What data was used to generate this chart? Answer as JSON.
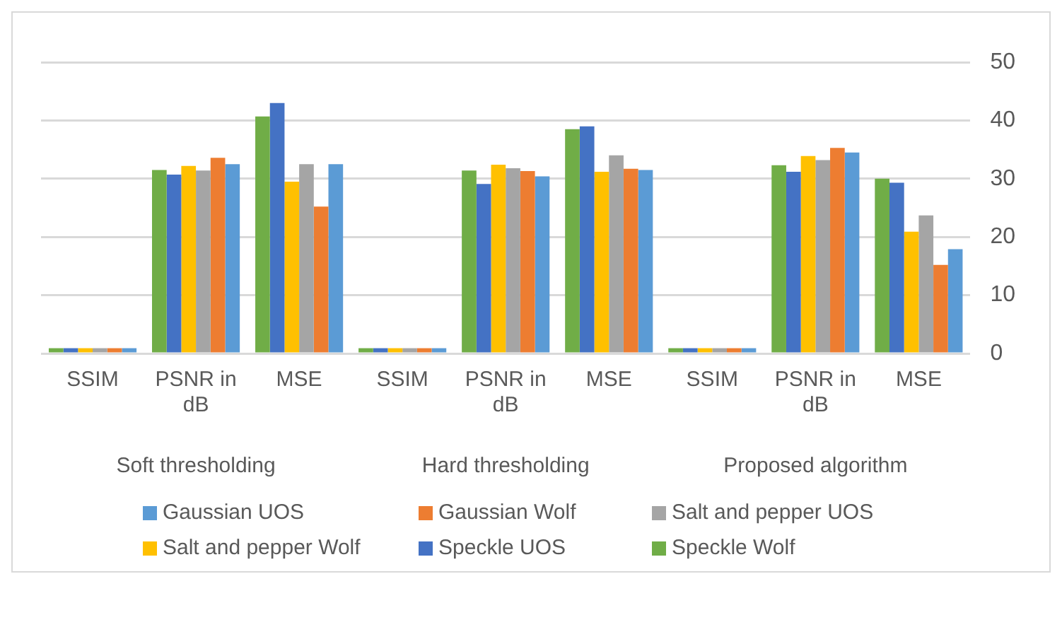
{
  "chart_data": {
    "type": "bar",
    "categories": [
      "SSIM",
      "PSNR in dB",
      "MSE",
      "SSIM",
      "PSNR in dB",
      "MSE",
      "SSIM",
      "PSNR in dB",
      "MSE"
    ],
    "series": [
      {
        "name": "Speckle Wolf",
        "color": "#70ad47",
        "values": [
          0.9,
          31.5,
          40.7,
          0.9,
          31.4,
          38.5,
          0.9,
          32.3,
          30
        ]
      },
      {
        "name": "Speckle UOS",
        "color": "#4472c4",
        "values": [
          0.9,
          30.7,
          43,
          0.9,
          29.1,
          39,
          0.9,
          31.2,
          29.3
        ]
      },
      {
        "name": "Salt and pepper Wolf",
        "color": "#ffc000",
        "values": [
          0.9,
          32.2,
          29.5,
          0.9,
          32.4,
          31.2,
          0.9,
          33.9,
          20.9
        ]
      },
      {
        "name": "Salt and pepper UOS",
        "color": "#a5a5a5",
        "values": [
          0.9,
          31.4,
          32.5,
          0.9,
          31.8,
          34,
          0.9,
          33.2,
          23.7
        ]
      },
      {
        "name": "Gaussian Wolf",
        "color": "#ed7d31",
        "values": [
          0.9,
          33.6,
          25.2,
          0.9,
          31.3,
          31.7,
          0.9,
          35.3,
          15.2
        ]
      },
      {
        "name": "Gaussian UOS",
        "color": "#5b9bd5",
        "values": [
          0.9,
          32.5,
          32.5,
          0.9,
          30.4,
          31.5,
          0.9,
          34.5,
          17.9
        ]
      }
    ],
    "annotations": [
      "Soft thresholding",
      "Hard thresholding",
      "Proposed algorithm"
    ],
    "ylim": [
      0,
      50
    ],
    "yticks": [
      0,
      10,
      20,
      30,
      40,
      50
    ],
    "grid": "y",
    "legend": "bottom"
  }
}
